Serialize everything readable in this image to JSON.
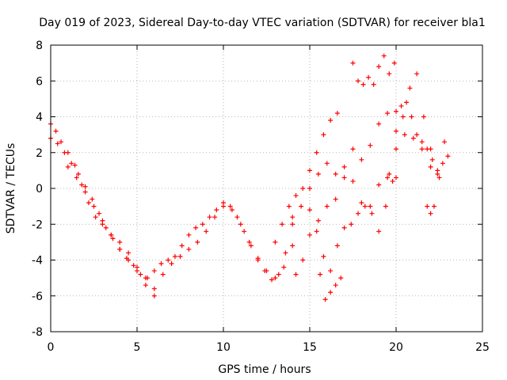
{
  "chart_data": {
    "type": "scatter",
    "title": "Day 019 of 2023, Sidereal Day-to-day VTEC variation (SDTVAR) for receiver bla1",
    "xlabel": "GPS time / hours",
    "ylabel": "SDTVAR / TECUs",
    "xlim": [
      0,
      25
    ],
    "ylim": [
      -8,
      8
    ],
    "xticks": [
      "0",
      "5",
      "10",
      "15",
      "20",
      "25"
    ],
    "yticks": [
      "-8",
      "-6",
      "-4",
      "-2",
      "0",
      "2",
      "4",
      "6",
      "8"
    ],
    "grid": true,
    "marker": "+",
    "color": "#ff0000",
    "series": [
      {
        "x": [
          0.0,
          0.3,
          0.6,
          1.0,
          1.4,
          1.8,
          2.2,
          2.6,
          3.0,
          3.5,
          4.0,
          4.5,
          5.0,
          5.5,
          6.0,
          6.5,
          7.0,
          7.5,
          8.0,
          8.5,
          9.0,
          9.5,
          10.0,
          10.5,
          11.0,
          11.5,
          12.0,
          12.5,
          13.0,
          13.5,
          14.0
        ],
        "y": [
          3.6,
          3.2,
          2.6,
          2.0,
          1.3,
          0.2,
          -0.8,
          -1.6,
          -2.0,
          -2.6,
          -3.0,
          -3.6,
          -4.4,
          -5.0,
          -5.6,
          -4.8,
          -4.2,
          -3.8,
          -3.4,
          -3.0,
          -2.4,
          -1.6,
          -1.0,
          -1.2,
          -2.0,
          -3.0,
          -4.0,
          -4.6,
          -5.0,
          -4.4,
          -3.2
        ]
      },
      {
        "x": [
          0.0,
          0.4,
          0.8,
          1.2,
          1.6,
          2.0,
          2.4,
          2.8,
          3.2,
          3.6,
          4.0,
          4.4,
          4.8,
          5.2,
          5.6,
          6.0,
          6.4,
          6.8,
          7.2,
          7.6,
          8.0,
          8.4,
          8.8,
          9.2,
          9.6,
          10.0,
          10.4,
          10.8,
          11.2,
          11.6,
          12.0,
          12.4,
          12.8,
          13.2,
          13.6,
          14.0
        ],
        "y": [
          2.8,
          2.5,
          2.0,
          1.4,
          0.8,
          0.1,
          -0.6,
          -1.4,
          -2.2,
          -2.8,
          -3.4,
          -3.9,
          -4.3,
          -4.8,
          -5.0,
          -4.6,
          -4.2,
          -4.0,
          -3.8,
          -3.2,
          -2.6,
          -2.2,
          -2.0,
          -1.6,
          -1.2,
          -0.8,
          -1.0,
          -1.6,
          -2.4,
          -3.2,
          -3.9,
          -4.6,
          -5.1,
          -4.8,
          -3.6,
          -2.0
        ]
      },
      {
        "x": [
          1.0,
          1.5,
          2.0,
          2.5,
          3.0,
          3.5,
          4.0,
          4.5,
          5.0,
          5.5,
          6.0
        ],
        "y": [
          1.2,
          0.6,
          -0.2,
          -1.0,
          -1.8,
          -2.6,
          -3.4,
          -4.0,
          -4.6,
          -5.4,
          -6.0
        ]
      },
      {
        "x": [
          13.0,
          13.4,
          13.8,
          14.2,
          14.6,
          15.0,
          15.4,
          15.8,
          16.2,
          16.6
        ],
        "y": [
          -3.0,
          -2.0,
          -1.0,
          -0.4,
          0.0,
          1.0,
          2.0,
          3.0,
          3.8,
          4.2
        ]
      },
      {
        "x": [
          14.0,
          14.5,
          15.0,
          15.5,
          16.0,
          16.5,
          17.0,
          17.5,
          18.0,
          18.5,
          19.0,
          19.5,
          20.0
        ],
        "y": [
          -1.6,
          -1.0,
          0.0,
          0.8,
          1.4,
          0.8,
          1.2,
          2.2,
          1.6,
          2.4,
          3.6,
          4.2,
          4.3
        ]
      },
      {
        "x": [
          14.2,
          14.6,
          15.0,
          15.5,
          16.0,
          16.5,
          17.0,
          17.5,
          18.0,
          18.5,
          19.0,
          19.5,
          20.0,
          20.5,
          21.0,
          21.5,
          22.0,
          22.5,
          23.0
        ],
        "y": [
          -4.8,
          -4.0,
          -2.6,
          -1.8,
          -1.0,
          -0.6,
          0.6,
          0.4,
          -0.8,
          -1.0,
          0.2,
          0.6,
          0.6,
          3.0,
          2.8,
          2.2,
          1.2,
          0.6,
          1.8
        ]
      },
      {
        "x": [
          15.0,
          15.4,
          15.8,
          16.2,
          16.6,
          17.0,
          17.4,
          17.8,
          18.2,
          18.6,
          19.0,
          19.4,
          19.8
        ],
        "y": [
          -1.2,
          -2.4,
          -3.8,
          -4.6,
          -3.2,
          -2.2,
          -2.0,
          -1.4,
          -1.0,
          -1.4,
          -2.4,
          -1.0,
          0.4
        ]
      },
      {
        "x": [
          15.6,
          15.9,
          16.2,
          16.5,
          16.8
        ],
        "y": [
          -4.8,
          -6.2,
          -5.8,
          -5.4,
          -5.0
        ]
      },
      {
        "x": [
          17.5,
          17.8,
          18.1,
          18.4,
          18.7,
          19.0,
          19.3,
          19.6,
          19.9
        ],
        "y": [
          7.0,
          6.0,
          5.8,
          6.2,
          5.8,
          6.8,
          7.4,
          6.4,
          7.0
        ]
      },
      {
        "x": [
          19.6,
          20.0,
          20.4,
          20.8,
          21.2,
          21.6,
          22.0,
          22.4,
          22.8
        ],
        "y": [
          0.8,
          2.2,
          4.0,
          5.6,
          6.4,
          4.0,
          2.2,
          1.0,
          2.6
        ]
      },
      {
        "x": [
          20.0,
          20.3,
          20.6,
          20.9,
          21.2,
          21.5,
          21.8,
          22.1,
          22.4,
          22.7
        ],
        "y": [
          3.2,
          4.6,
          4.8,
          4.0,
          3.0,
          2.6,
          2.2,
          1.6,
          0.8,
          1.4
        ]
      },
      {
        "x": [
          21.8,
          22.0,
          22.2
        ],
        "y": [
          -1.0,
          -1.4,
          -1.0
        ]
      }
    ]
  }
}
